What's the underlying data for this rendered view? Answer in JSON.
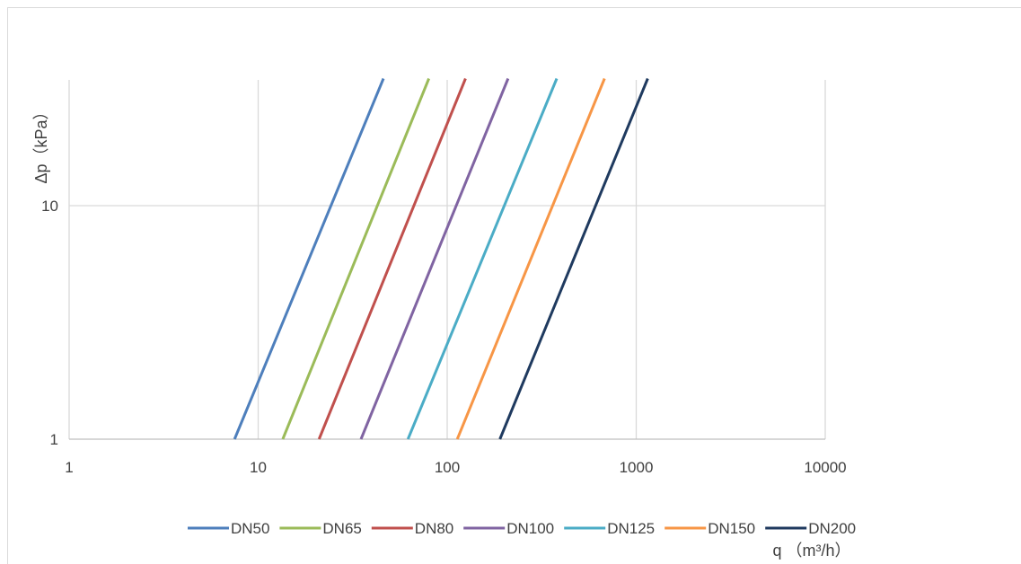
{
  "chart_data": {
    "type": "line",
    "x_scale": "log",
    "y_scale": "log",
    "xlim": [
      1,
      10000
    ],
    "ylim": [
      1,
      35
    ],
    "x_ticks": [
      "1",
      "10",
      "100",
      "1000",
      "10000"
    ],
    "y_ticks": [
      "1",
      "10"
    ],
    "xlabel": "q （m³/h）",
    "ylabel": "Δp（kPa）",
    "grid": true,
    "legend_position": "bottom",
    "series": [
      {
        "name": "DN50",
        "color": "#4e7fbc",
        "x": [
          7.5,
          46
        ],
        "y": [
          1,
          35
        ]
      },
      {
        "name": "DN65",
        "color": "#9bbb59",
        "x": [
          13.5,
          80
        ],
        "y": [
          1,
          35
        ]
      },
      {
        "name": "DN80",
        "color": "#c0504d",
        "x": [
          21,
          125
        ],
        "y": [
          1,
          35
        ]
      },
      {
        "name": "DN100",
        "color": "#8064a2",
        "x": [
          35,
          210
        ],
        "y": [
          1,
          35
        ]
      },
      {
        "name": "DN125",
        "color": "#4bacc6",
        "x": [
          62,
          380
        ],
        "y": [
          1,
          35
        ]
      },
      {
        "name": "DN150",
        "color": "#f79646",
        "x": [
          113,
          680
        ],
        "y": [
          1,
          35
        ]
      },
      {
        "name": "DN200",
        "color": "#1f3a5f",
        "x": [
          190,
          1150
        ],
        "y": [
          1,
          35
        ]
      }
    ]
  }
}
